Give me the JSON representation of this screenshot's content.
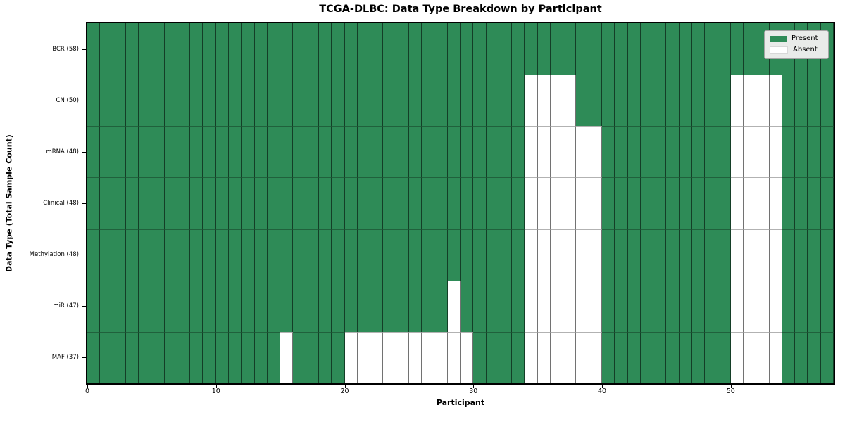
{
  "chart_data": {
    "type": "heatmap",
    "title": "TCGA-DLBC: Data Type Breakdown by Participant",
    "xlabel": "Participant",
    "ylabel": "Data Type (Total Sample Count)",
    "n_participants": 58,
    "x_ticks": [
      0,
      10,
      20,
      30,
      40,
      50
    ],
    "grid": true,
    "legend_position": "upper right",
    "legend": [
      {
        "label": "Present",
        "value": "present"
      },
      {
        "label": "Absent",
        "value": "absent"
      }
    ],
    "colors": {
      "present": "#2e8b57",
      "absent": "#ffffff",
      "grid_vertical": "rgba(0,0,0,0.55)",
      "grid_horizontal": "rgba(0,0,0,0.3)",
      "frame": "#000000",
      "legend_background": "#e9ebe9",
      "legend_border": "#a6a6a6"
    },
    "rows": [
      {
        "data_type": "BCR",
        "label": "BCR (58)",
        "present_count": 58,
        "absent_participants": []
      },
      {
        "data_type": "CN",
        "label": "CN (50)",
        "present_count": 50,
        "absent_participants": [
          34,
          35,
          36,
          37,
          50,
          51,
          52,
          53
        ]
      },
      {
        "data_type": "mRNA",
        "label": "mRNA (48)",
        "present_count": 48,
        "absent_participants": [
          34,
          35,
          36,
          37,
          38,
          39,
          50,
          51,
          52,
          53
        ]
      },
      {
        "data_type": "Clinical",
        "label": "Clinical (48)",
        "present_count": 48,
        "absent_participants": [
          34,
          35,
          36,
          37,
          38,
          39,
          50,
          51,
          52,
          53
        ]
      },
      {
        "data_type": "Methylation",
        "label": "Methylation (48)",
        "present_count": 48,
        "absent_participants": [
          34,
          35,
          36,
          37,
          38,
          39,
          50,
          51,
          52,
          53
        ]
      },
      {
        "data_type": "miR",
        "label": "miR (47)",
        "present_count": 47,
        "absent_participants": [
          28,
          34,
          35,
          36,
          37,
          38,
          39,
          50,
          51,
          52,
          53
        ]
      },
      {
        "data_type": "MAF",
        "label": "MAF (37)",
        "present_count": 37,
        "absent_participants": [
          15,
          20,
          21,
          22,
          23,
          24,
          25,
          26,
          27,
          28,
          29,
          34,
          35,
          36,
          37,
          38,
          39,
          50,
          51,
          52,
          53
        ]
      }
    ]
  }
}
